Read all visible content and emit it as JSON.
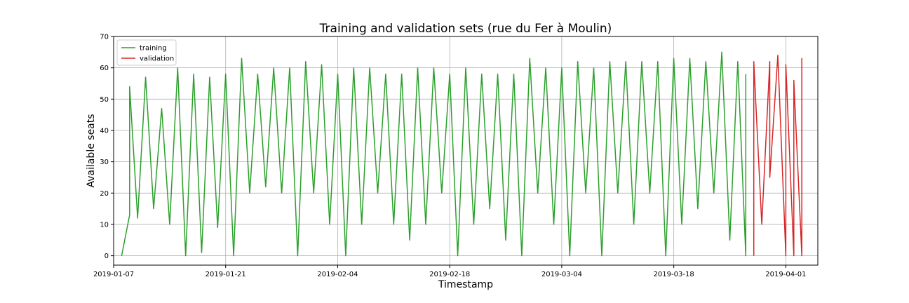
{
  "chart_data": {
    "type": "line",
    "title": "Training and validation sets (rue du Fer à Moulin)",
    "xlabel": "Timestamp",
    "ylabel": "Available seats",
    "xlim": [
      "2019-01-07",
      "2019-04-05"
    ],
    "ylim": [
      -3,
      70
    ],
    "x_ticks": [
      "2019-01-07",
      "2019-01-21",
      "2019-02-04",
      "2019-02-18",
      "2019-03-04",
      "2019-03-18",
      "2019-04-01"
    ],
    "y_ticks": [
      0,
      10,
      20,
      30,
      40,
      50,
      60,
      70
    ],
    "grid": true,
    "legend": "upper-left",
    "series": [
      {
        "name": "training",
        "color": "#2ca02c",
        "points": [
          [
            "2019-01-08",
            0
          ],
          [
            "2019-01-09",
            13
          ],
          [
            "2019-01-09",
            54
          ],
          [
            "2019-01-10",
            12
          ],
          [
            "2019-01-11",
            57
          ],
          [
            "2019-01-12",
            15
          ],
          [
            "2019-01-13",
            47
          ],
          [
            "2019-01-14",
            10
          ],
          [
            "2019-01-15",
            60
          ],
          [
            "2019-01-16",
            0
          ],
          [
            "2019-01-17",
            58
          ],
          [
            "2019-01-18",
            1
          ],
          [
            "2019-01-19",
            57
          ],
          [
            "2019-01-20",
            9
          ],
          [
            "2019-01-21",
            58
          ],
          [
            "2019-01-22",
            0
          ],
          [
            "2019-01-23",
            63
          ],
          [
            "2019-01-24",
            20
          ],
          [
            "2019-01-25",
            58
          ],
          [
            "2019-01-26",
            22
          ],
          [
            "2019-01-27",
            60
          ],
          [
            "2019-01-28",
            20
          ],
          [
            "2019-01-29",
            60
          ],
          [
            "2019-01-30",
            0
          ],
          [
            "2019-01-31",
            62
          ],
          [
            "2019-02-01",
            20
          ],
          [
            "2019-02-02",
            61
          ],
          [
            "2019-02-03",
            10
          ],
          [
            "2019-02-04",
            58
          ],
          [
            "2019-02-05",
            0
          ],
          [
            "2019-02-06",
            60
          ],
          [
            "2019-02-07",
            10
          ],
          [
            "2019-02-08",
            60
          ],
          [
            "2019-02-09",
            20
          ],
          [
            "2019-02-10",
            58
          ],
          [
            "2019-02-11",
            10
          ],
          [
            "2019-02-12",
            58
          ],
          [
            "2019-02-13",
            5
          ],
          [
            "2019-02-14",
            60
          ],
          [
            "2019-02-15",
            10
          ],
          [
            "2019-02-16",
            60
          ],
          [
            "2019-02-17",
            20
          ],
          [
            "2019-02-18",
            58
          ],
          [
            "2019-02-19",
            0
          ],
          [
            "2019-02-20",
            60
          ],
          [
            "2019-02-21",
            10
          ],
          [
            "2019-02-22",
            58
          ],
          [
            "2019-02-23",
            15
          ],
          [
            "2019-02-24",
            58
          ],
          [
            "2019-02-25",
            5
          ],
          [
            "2019-02-26",
            58
          ],
          [
            "2019-02-27",
            0
          ],
          [
            "2019-02-28",
            63
          ],
          [
            "2019-03-01",
            20
          ],
          [
            "2019-03-02",
            60
          ],
          [
            "2019-03-03",
            10
          ],
          [
            "2019-03-04",
            60
          ],
          [
            "2019-03-05",
            0
          ],
          [
            "2019-03-06",
            62
          ],
          [
            "2019-03-07",
            20
          ],
          [
            "2019-03-08",
            60
          ],
          [
            "2019-03-09",
            0
          ],
          [
            "2019-03-10",
            62
          ],
          [
            "2019-03-11",
            20
          ],
          [
            "2019-03-12",
            62
          ],
          [
            "2019-03-13",
            10
          ],
          [
            "2019-03-14",
            62
          ],
          [
            "2019-03-15",
            20
          ],
          [
            "2019-03-16",
            62
          ],
          [
            "2019-03-17",
            0
          ],
          [
            "2019-03-18",
            63
          ],
          [
            "2019-03-19",
            10
          ],
          [
            "2019-03-20",
            63
          ],
          [
            "2019-03-21",
            15
          ],
          [
            "2019-03-22",
            62
          ],
          [
            "2019-03-23",
            20
          ],
          [
            "2019-03-24",
            65
          ],
          [
            "2019-03-25",
            5
          ],
          [
            "2019-03-26",
            62
          ],
          [
            "2019-03-27",
            0
          ],
          [
            "2019-03-27",
            58
          ]
        ]
      },
      {
        "name": "validation",
        "color": "#d62728",
        "points": [
          [
            "2019-03-28",
            0
          ],
          [
            "2019-03-28",
            62
          ],
          [
            "2019-03-29",
            10
          ],
          [
            "2019-03-30",
            62
          ],
          [
            "2019-03-30",
            25
          ],
          [
            "2019-03-31",
            64
          ],
          [
            "2019-04-01",
            0
          ],
          [
            "2019-04-01",
            61
          ],
          [
            "2019-04-02",
            0
          ],
          [
            "2019-04-02",
            56
          ],
          [
            "2019-04-03",
            0
          ],
          [
            "2019-04-03",
            63
          ],
          [
            "2019-04-03",
            8
          ]
        ]
      }
    ]
  }
}
